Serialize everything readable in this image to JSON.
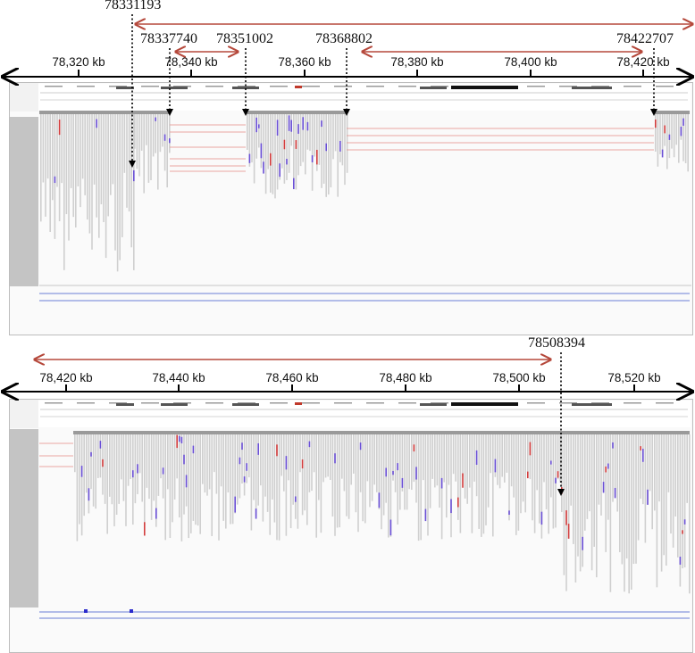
{
  "top_view": {
    "kb_labels": [
      "78,320 kb",
      "78,340 kb",
      "78,360 kb",
      "78,380 kb",
      "78,400 kb",
      "78,420 kb"
    ],
    "breakpoints": [
      "78331193",
      "78337740",
      "78351002",
      "78368802",
      "78422707"
    ]
  },
  "bottom_view": {
    "kb_labels": [
      "78,420 kb",
      "78,440 kb",
      "78,460 kb",
      "78,480 kb",
      "78,500 kb",
      "78,520 kb"
    ],
    "breakpoints": [
      "78508394"
    ]
  },
  "colors": {
    "arrow_red": "#b5483b",
    "read_gray": "#cfcfcf",
    "mismatch_blue": "#6a4fd6",
    "mismatch_red": "#d33c3c",
    "side_gray": "#c4c4c4"
  }
}
